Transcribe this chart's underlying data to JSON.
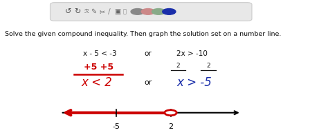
{
  "bg_color": "#ffffff",
  "toolbar_bg": "#e8e8e8",
  "main_text": "Solve the given compound inequality. Then graph the solution set on a number line.",
  "main_text_fontsize": 6.8,
  "red_color": "#cc0000",
  "blue_color": "#1a2eaa",
  "dark_color": "#111111",
  "label_minus5": "-5",
  "label_2": "2",
  "circle_colors": [
    "#888888",
    "#cc8888",
    "#88aa88",
    "#1a2eaa"
  ]
}
